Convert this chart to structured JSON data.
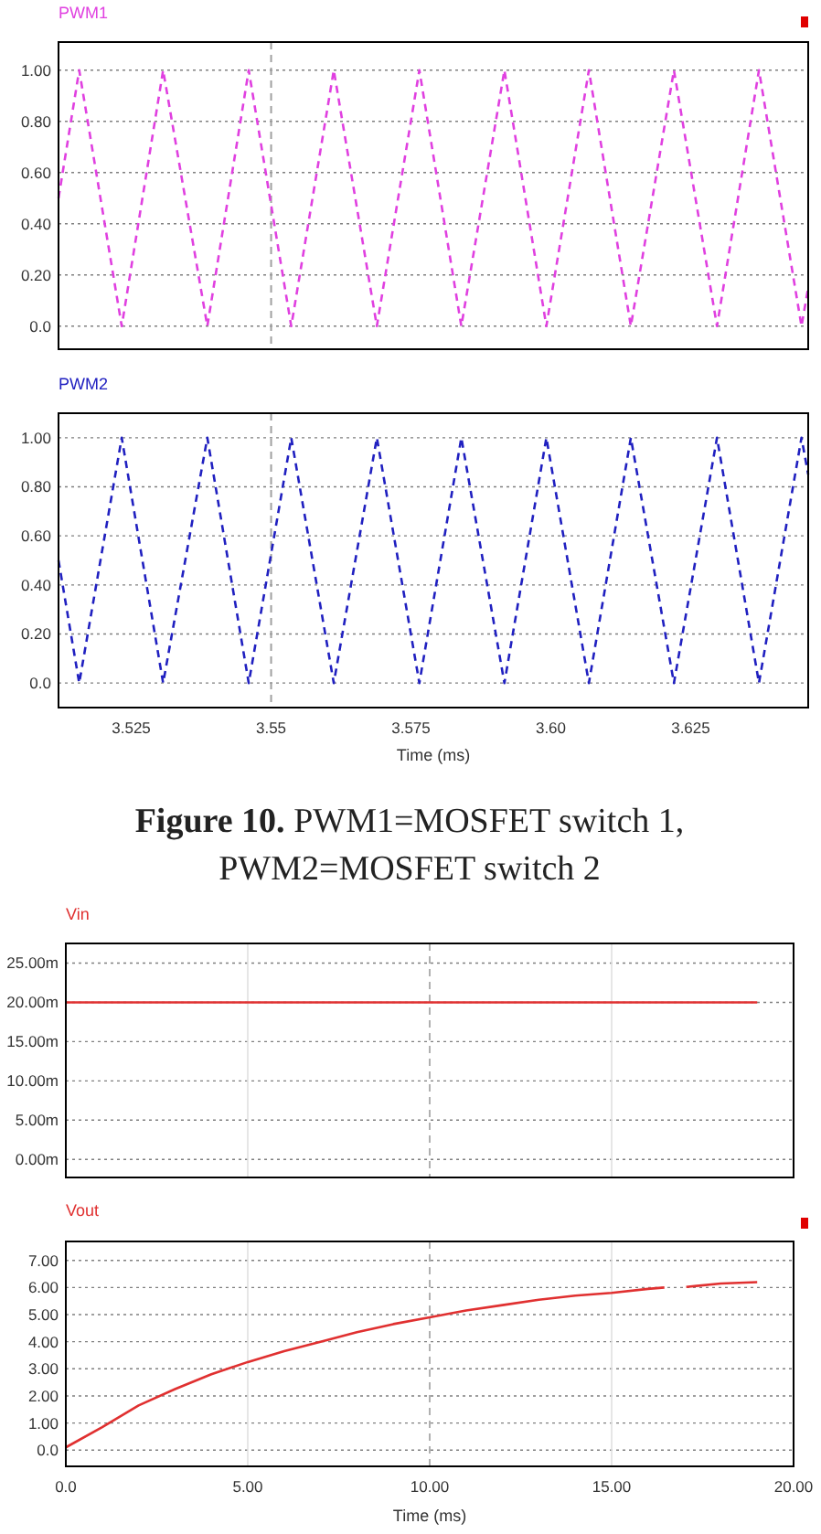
{
  "chart_data": [
    {
      "type": "line",
      "xlim": [
        3.512,
        3.646
      ],
      "ylim": [
        -0.09,
        1.11
      ],
      "yticks": [
        {
          "value": 0,
          "label": "0.0"
        },
        {
          "value": 0.2,
          "label": "0.20"
        },
        {
          "value": 0.4,
          "label": "0.40"
        },
        {
          "value": 0.6,
          "label": "0.60"
        },
        {
          "value": 0.8,
          "label": "0.80"
        },
        {
          "value": 1,
          "label": "1.00"
        }
      ],
      "tick_labels": "y",
      "grid": "y",
      "legend": "top left",
      "line_style": "dashed",
      "ref_lines": [
        {
          "axis": "x",
          "value": 3.55,
          "color": "#a0a0a0",
          "line_style": "dashed"
        }
      ],
      "series": [
        {
          "name": "PWM1",
          "color": "#e040e0",
          "x": [
            3.512,
            3.5157,
            3.5233,
            3.5307,
            3.5386,
            3.546,
            3.5536,
            3.5612,
            3.5689,
            3.5765,
            3.584,
            3.5917,
            3.5992,
            3.6068,
            3.6143,
            3.622,
            3.6297,
            3.6372,
            3.6448,
            3.646
          ],
          "values": [
            0.5,
            1,
            0,
            1,
            0,
            1,
            0,
            1,
            0,
            1,
            0,
            1,
            0,
            1,
            0,
            1,
            0,
            1,
            0,
            0.15
          ]
        }
      ]
    },
    {
      "type": "line",
      "xlabel": "Time (ms)",
      "xlim": [
        3.512,
        3.646
      ],
      "xticks": [
        {
          "value": 3.525,
          "label": "3.525"
        },
        {
          "value": 3.55,
          "label": "3.55"
        },
        {
          "value": 3.575,
          "label": "3.575"
        },
        {
          "value": 3.6,
          "label": "3.60"
        },
        {
          "value": 3.625,
          "label": "3.625"
        }
      ],
      "ylim": [
        -0.1,
        1.1
      ],
      "yticks": [
        {
          "value": 0,
          "label": "0.0"
        },
        {
          "value": 0.2,
          "label": "0.20"
        },
        {
          "value": 0.4,
          "label": "0.40"
        },
        {
          "value": 0.6,
          "label": "0.60"
        },
        {
          "value": 0.8,
          "label": "0.80"
        },
        {
          "value": 1,
          "label": "1.00"
        }
      ],
      "grid": "y",
      "legend": "top left",
      "line_style": "dashed",
      "ref_lines": [
        {
          "axis": "x",
          "value": 3.55,
          "color": "#a0a0a0",
          "line_style": "dashed"
        }
      ],
      "annotations": [
        "Figure 10. PWM1=MOSFET switch 1, PWM2=MOSFET switch 2"
      ],
      "series": [
        {
          "name": "PWM2",
          "color": "#2020c0",
          "x": [
            3.512,
            3.5157,
            3.5233,
            3.5307,
            3.5386,
            3.546,
            3.5536,
            3.5612,
            3.5689,
            3.5765,
            3.584,
            3.5917,
            3.5992,
            3.6068,
            3.6143,
            3.622,
            3.6297,
            3.6372,
            3.6448,
            3.646
          ],
          "values": [
            0.5,
            0,
            1,
            0,
            1,
            0,
            1,
            0,
            1,
            0,
            1,
            0,
            1,
            0,
            1,
            0,
            1,
            0,
            1,
            0.85
          ]
        }
      ]
    },
    {
      "type": "line",
      "xlim": [
        0,
        20
      ],
      "xticks": [
        0,
        5,
        10,
        15,
        20
      ],
      "ylim": [
        -2.3,
        27.5
      ],
      "yticks": [
        {
          "value": 0,
          "label": "0.00m"
        },
        {
          "value": 5,
          "label": "5.00m"
        },
        {
          "value": 10,
          "label": "10.00m"
        },
        {
          "value": 15,
          "label": "15.00m"
        },
        {
          "value": 20,
          "label": "20.00m"
        },
        {
          "value": 25,
          "label": "25.00m"
        }
      ],
      "tick_labels": "y",
      "grid": true,
      "legend": "top left",
      "line_style": "solid",
      "ref_lines": [
        {
          "axis": "x",
          "value": 10,
          "color": "#b0b0b0",
          "line_style": "dashed"
        }
      ],
      "series": [
        {
          "name": "Vin",
          "color": "#e03030",
          "x": [
            0,
            19
          ],
          "values": [
            20,
            20
          ]
        }
      ]
    },
    {
      "type": "line",
      "xlabel": "Time (ms)",
      "xlim": [
        0,
        20
      ],
      "xticks": [
        {
          "value": 0,
          "label": "0.0"
        },
        {
          "value": 5,
          "label": "5.00"
        },
        {
          "value": 10,
          "label": "10.00"
        },
        {
          "value": 15,
          "label": "15.00"
        },
        {
          "value": 20,
          "label": "20.00"
        }
      ],
      "ylim": [
        -0.6,
        7.7
      ],
      "yticks": [
        {
          "value": 0,
          "label": "0.0"
        },
        {
          "value": 1,
          "label": "1.00"
        },
        {
          "value": 2,
          "label": "2.00"
        },
        {
          "value": 3,
          "label": "3.00"
        },
        {
          "value": 4,
          "label": "4.00"
        },
        {
          "value": 5,
          "label": "5.00"
        },
        {
          "value": 6,
          "label": "6.00"
        },
        {
          "value": 7,
          "label": "7.00"
        }
      ],
      "grid": true,
      "legend": "top left",
      "line_style": "solid",
      "ref_lines": [
        {
          "axis": "x",
          "value": 10,
          "color": "#b0b0b0",
          "line_style": "dashed"
        }
      ],
      "series": [
        {
          "name": "Vout",
          "color": "#e03030",
          "x": [
            0,
            1,
            2,
            3,
            4,
            5,
            6,
            7,
            8,
            9,
            10,
            11,
            12,
            13,
            14,
            15,
            16,
            16.45,
            16.7,
            17.05,
            18,
            19
          ],
          "values": [
            0.1,
            0.85,
            1.65,
            2.25,
            2.8,
            3.25,
            3.65,
            4.0,
            4.35,
            4.65,
            4.9,
            5.15,
            5.35,
            5.55,
            5.7,
            5.8,
            5.95,
            6.0,
            null,
            6.02,
            6.15,
            6.2
          ]
        }
      ]
    }
  ]
}
